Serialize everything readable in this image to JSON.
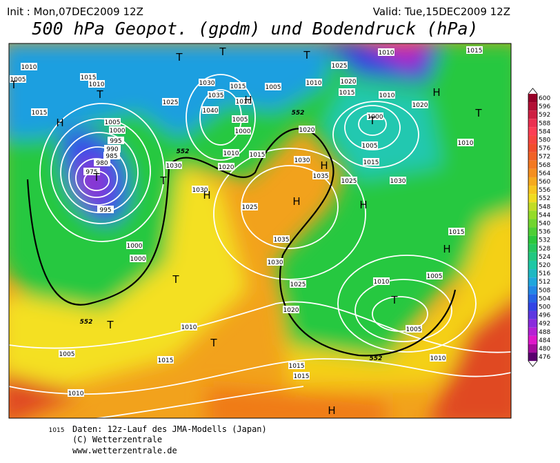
{
  "header": {
    "init": "Init : Mon,07DEC2009 12Z",
    "valid": "Valid: Tue,15DEC2009 12Z",
    "title": "500 hPa Geopot. (gpdm) und Bodendruck (hPa)"
  },
  "map": {
    "isobar_labels": [
      1010,
      1015,
      1005,
      1010,
      1015,
      1005,
      1000,
      995,
      990,
      985,
      980,
      975,
      995,
      1000,
      1000,
      1025,
      1030,
      1035,
      1040,
      1015,
      1010,
      1005,
      1000,
      1010,
      1015,
      1020,
      1030,
      1005,
      1030,
      1025,
      1020,
      1030,
      1035,
      1025,
      1030,
      1010,
      1020,
      1025,
      1015,
      1000,
      1005,
      1015,
      1010,
      1010,
      1020,
      1015,
      1010,
      1035,
      1030,
      1025,
      1020,
      1015,
      1010,
      1005,
      1005,
      1010,
      1010,
      1005,
      1015,
      1010,
      1015,
      1015,
      1015
    ],
    "contour_labels": [
      552,
      552,
      552,
      552
    ],
    "pressure_centers": [
      "H",
      "T",
      "T",
      "H",
      "T",
      "H",
      "T",
      "T",
      "H",
      "H",
      "T",
      "H",
      "H",
      "H",
      "T",
      "T",
      "T",
      "T",
      "T",
      "H",
      "T",
      "T"
    ]
  },
  "colorbar": {
    "ticks": [
      600,
      596,
      592,
      588,
      584,
      580,
      576,
      572,
      568,
      564,
      560,
      556,
      552,
      548,
      544,
      540,
      536,
      532,
      528,
      524,
      520,
      516,
      512,
      508,
      504,
      500,
      496,
      492,
      488,
      484,
      480,
      476
    ]
  },
  "footer": {
    "line1": "Daten: 12z-Lauf des JMA-Modells (Japan)",
    "line2": "(C) Wetterzentrale",
    "line3": "www.wetterzentrale.de"
  }
}
